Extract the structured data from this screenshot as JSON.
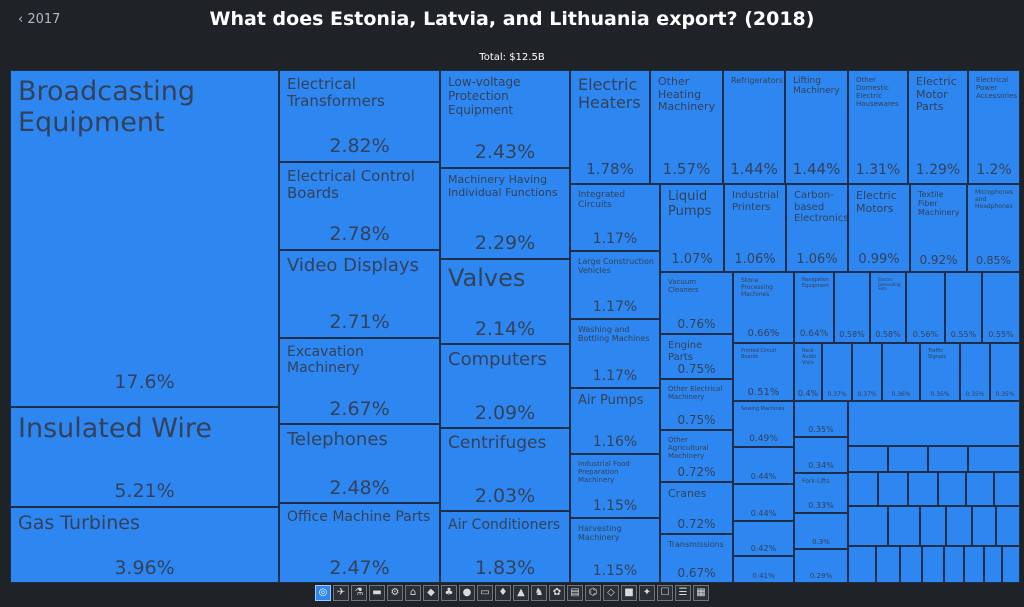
{
  "header": {
    "back_label": "‹ 2017",
    "title": "What does Estonia, Latvia, and Lithuania export? (2018)",
    "total_label": "Total: $12.5B"
  },
  "colors": {
    "background": "#1f2227",
    "tile_fill": "#2e86f0",
    "tile_border": "#1c2e48",
    "tile_text": "#33425a"
  },
  "chart_data": {
    "type": "treemap",
    "title": "What does Estonia, Latvia, and Lithuania export? (2018)",
    "total": "$12.5B",
    "unit": "% of total exports",
    "items": [
      {
        "name": "Broadcasting Equipment",
        "value": 17.6
      },
      {
        "name": "Insulated Wire",
        "value": 5.21
      },
      {
        "name": "Gas Turbines",
        "value": 3.96
      },
      {
        "name": "Electrical Transformers",
        "value": 2.82
      },
      {
        "name": "Electrical Control Boards",
        "value": 2.78
      },
      {
        "name": "Video Displays",
        "value": 2.71
      },
      {
        "name": "Excavation Machinery",
        "value": 2.67
      },
      {
        "name": "Telephones",
        "value": 2.48
      },
      {
        "name": "Office Machine Parts",
        "value": 2.47
      },
      {
        "name": "Low-voltage Protection Equipment",
        "value": 2.43
      },
      {
        "name": "Machinery Having Individual Functions",
        "value": 2.29
      },
      {
        "name": "Valves",
        "value": 2.14
      },
      {
        "name": "Computers",
        "value": 2.09
      },
      {
        "name": "Centrifuges",
        "value": 2.03
      },
      {
        "name": "Air Conditioners",
        "value": 1.83
      },
      {
        "name": "Electric Heaters",
        "value": 1.78
      },
      {
        "name": "Other Heating Machinery",
        "value": 1.57
      },
      {
        "name": "Refrigerators",
        "value": 1.44
      },
      {
        "name": "Lifting Machinery",
        "value": 1.44
      },
      {
        "name": "Other Domestic Electric Housewares",
        "value": 1.31
      },
      {
        "name": "Electric Motor Parts",
        "value": 1.29
      },
      {
        "name": "Electrical Power Accessories",
        "value": 1.2
      },
      {
        "name": "Integrated Circuits",
        "value": 1.17
      },
      {
        "name": "Large Construction Vehicles",
        "value": 1.17
      },
      {
        "name": "Washing and Bottling Machines",
        "value": 1.17
      },
      {
        "name": "Air Pumps",
        "value": 1.16
      },
      {
        "name": "Industrial Food Preparation Machinery",
        "value": 1.15
      },
      {
        "name": "Harvesting Machinery",
        "value": 1.15
      },
      {
        "name": "Liquid Pumps",
        "value": 1.07
      },
      {
        "name": "Industrial Printers",
        "value": 1.06
      },
      {
        "name": "Carbon-based Electronics",
        "value": 1.06
      },
      {
        "name": "Electric Motors",
        "value": 0.99
      },
      {
        "name": "Textile Fiber Machinery",
        "value": 0.92
      },
      {
        "name": "Microphones and Headphones",
        "value": 0.85
      },
      {
        "name": "Vacuum Cleaners",
        "value": 0.76
      },
      {
        "name": "Engine Parts",
        "value": 0.75
      },
      {
        "name": "Other Electrical Machinery",
        "value": 0.75
      },
      {
        "name": "Other Agricultural Machinery",
        "value": 0.72
      },
      {
        "name": "Cranes",
        "value": 0.72
      },
      {
        "name": "Transmissions",
        "value": 0.67
      },
      {
        "name": "Stone Processing Machines",
        "value": 0.66
      },
      {
        "name": "Navigation Equipment",
        "value": 0.64
      },
      {
        "name": "",
        "value": 0.58
      },
      {
        "name": "Electric Generating Sets",
        "value": 0.58
      },
      {
        "name": "",
        "value": 0.56
      },
      {
        "name": "",
        "value": 0.55
      },
      {
        "name": "",
        "value": 0.55
      },
      {
        "name": "Printed Circuit Boards",
        "value": 0.51
      },
      {
        "name": "Rock Audio Visio",
        "value": 0.4
      },
      {
        "name": "",
        "value": 0.37
      },
      {
        "name": "",
        "value": 0.37
      },
      {
        "name": "",
        "value": 0.36
      },
      {
        "name": "Traffic Signals",
        "value": 0.35
      },
      {
        "name": "",
        "value": 0.35
      },
      {
        "name": "",
        "value": 0.35
      },
      {
        "name": "Sewing Machines",
        "value": 0.49
      },
      {
        "name": "",
        "value": 0.35
      },
      {
        "name": "",
        "value": 0.44
      },
      {
        "name": "",
        "value": 0.34
      },
      {
        "name": "",
        "value": 0.44
      },
      {
        "name": "Fork-Lifts",
        "value": 0.33
      },
      {
        "name": "",
        "value": 0.42
      },
      {
        "name": "",
        "value": 0.3
      },
      {
        "name": "",
        "value": 0.41
      },
      {
        "name": "",
        "value": 0.29
      }
    ]
  },
  "category_icons": [
    {
      "name": "electronics-icon",
      "glyph": "◎",
      "active": true
    },
    {
      "name": "transport-icon",
      "glyph": "✈"
    },
    {
      "name": "chemicals-icon",
      "glyph": "⚗"
    },
    {
      "name": "metals-icon",
      "glyph": "▬"
    },
    {
      "name": "machines-icon",
      "glyph": "⚙"
    },
    {
      "name": "plastics-icon",
      "glyph": "⌂"
    },
    {
      "name": "minerals-icon",
      "glyph": "◆"
    },
    {
      "name": "wood-icon",
      "glyph": "♣"
    },
    {
      "name": "food-icon",
      "glyph": "●"
    },
    {
      "name": "vehicles-icon",
      "glyph": "▭"
    },
    {
      "name": "textiles-icon",
      "glyph": "♦"
    },
    {
      "name": "footwear-icon",
      "glyph": "▲"
    },
    {
      "name": "animal-products-icon",
      "glyph": "♞"
    },
    {
      "name": "vegetable-products-icon",
      "glyph": "✿"
    },
    {
      "name": "paper-icon",
      "glyph": "▤"
    },
    {
      "name": "instruments-icon",
      "glyph": "⌬"
    },
    {
      "name": "precious-metals-icon",
      "glyph": "◇"
    },
    {
      "name": "stone-icon",
      "glyph": "■"
    },
    {
      "name": "weapons-icon",
      "glyph": "✦"
    },
    {
      "name": "art-icon",
      "glyph": "☐"
    },
    {
      "name": "miscellaneous-icon",
      "glyph": "☰"
    },
    {
      "name": "services-icon",
      "glyph": "▦"
    }
  ]
}
